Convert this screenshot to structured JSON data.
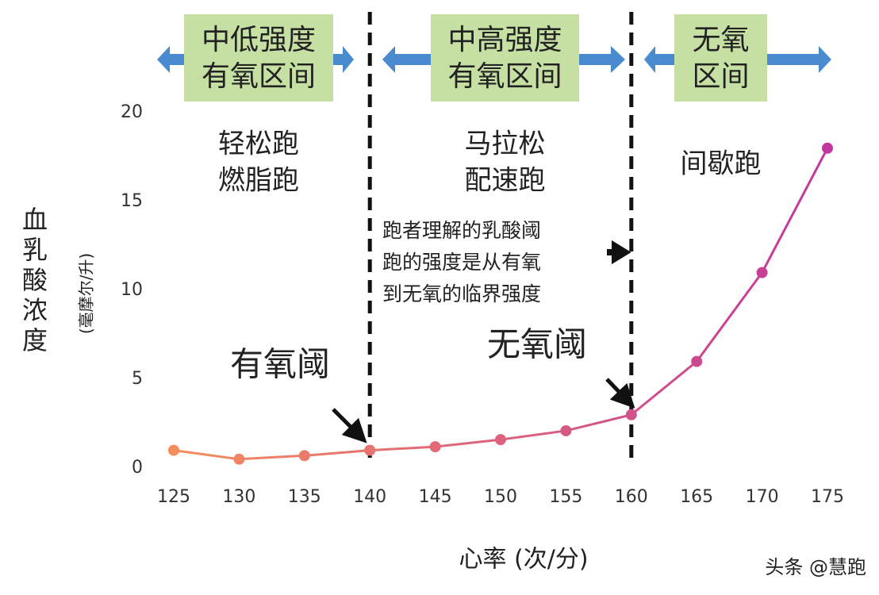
{
  "chart_data": {
    "type": "line",
    "x": [
      125,
      130,
      135,
      140,
      145,
      150,
      155,
      160,
      165,
      170,
      175
    ],
    "series": [
      {
        "values": [
          1.0,
          0.5,
          0.7,
          1.0,
          1.2,
          1.6,
          2.1,
          3.0,
          6.0,
          11.0,
          18.0
        ]
      }
    ],
    "colors": [
      "#f58c5c",
      "#c2379e"
    ],
    "xlim": [
      125,
      175
    ],
    "ylim": [
      0,
      20
    ],
    "xticks": [
      125,
      130,
      135,
      140,
      145,
      150,
      155,
      160,
      165,
      170,
      175
    ],
    "yticks": [
      0,
      5,
      10,
      15,
      20
    ],
    "grid": false,
    "ylabel": "血乳酸浓度",
    "ylabel_unit": "(毫摩尔/升)",
    "xlabel": "心率 (次/分)",
    "zones": [
      {
        "lines": [
          "中低强度",
          "有氧区间"
        ],
        "activity": [
          "轻松跑",
          "燃脂跑"
        ]
      },
      {
        "lines": [
          "中高强度",
          "有氧区间"
        ],
        "activity": [
          "马拉松",
          "配速跑"
        ]
      },
      {
        "lines": [
          "无氧",
          "区间"
        ],
        "activity": [
          "间歇跑"
        ]
      }
    ],
    "note": [
      "跑者理解的乳酸阈",
      "跑的强度是从有氧",
      "到无氧的临界强度"
    ],
    "thresholds": [
      "有氧阈",
      "无氧阈"
    ],
    "watermark": "头条 @慧跑"
  }
}
